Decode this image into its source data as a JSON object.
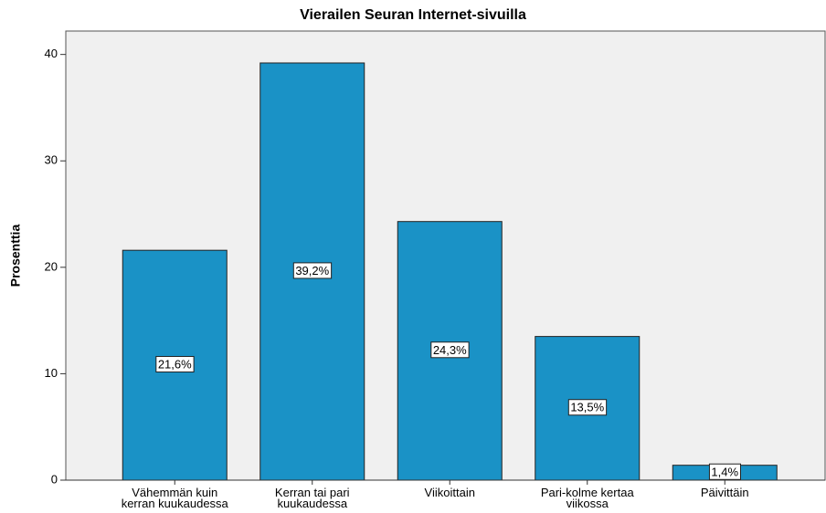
{
  "chart_data": {
    "type": "bar",
    "title": "Vierailen Seuran Internet-sivuilla",
    "y_label": "Prosenttia",
    "categories": [
      "Vähemmän kuin kerran kuukaudessa",
      "Kerran tai pari kuukaudessa",
      "Viikoittain",
      "Pari-kolme kertaa viikossa",
      "Päivittäin"
    ],
    "values": [
      21.6,
      39.2,
      24.3,
      13.5,
      1.4
    ],
    "value_labels": [
      "21,6%",
      "39,2%",
      "24,3%",
      "13,5%",
      "1,4%"
    ],
    "color": "#1a92c6",
    "ylim": [
      0,
      42.2
    ],
    "yticks": [
      0,
      10,
      20,
      30,
      40
    ],
    "grid": false
  }
}
